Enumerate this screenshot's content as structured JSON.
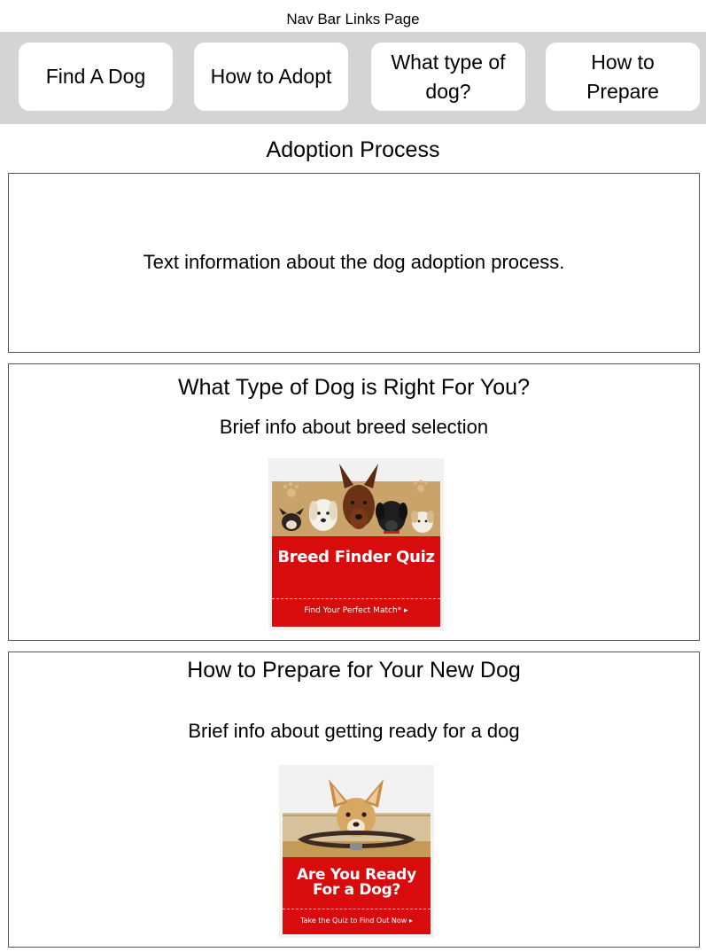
{
  "page": {
    "title": "Nav Bar Links Page"
  },
  "nav": {
    "items": [
      {
        "label": "Find A Dog"
      },
      {
        "label": "How to Adopt"
      },
      {
        "label": "What type of dog?"
      },
      {
        "label": "How to Prepare"
      }
    ]
  },
  "adoption": {
    "heading": "Adoption Process",
    "text": "Text information about the dog adoption process."
  },
  "dog_type": {
    "heading": "What Type of Dog is Right For You?",
    "subtext": "Brief info about breed selection",
    "ad": {
      "title": "Breed Finder Quiz",
      "cta": "Find Your Perfect Match*"
    }
  },
  "prepare": {
    "heading": "How to Prepare for Your New Dog",
    "subtext": "Brief info about getting ready for a dog",
    "ad": {
      "title": "Are You Ready For a Dog?",
      "cta": "Take the Quiz to Find Out Now"
    }
  },
  "colors": {
    "nav_background": "#d4d4d4",
    "ad_red": "#d80c0c",
    "ad_tan": "#c9a36a"
  }
}
